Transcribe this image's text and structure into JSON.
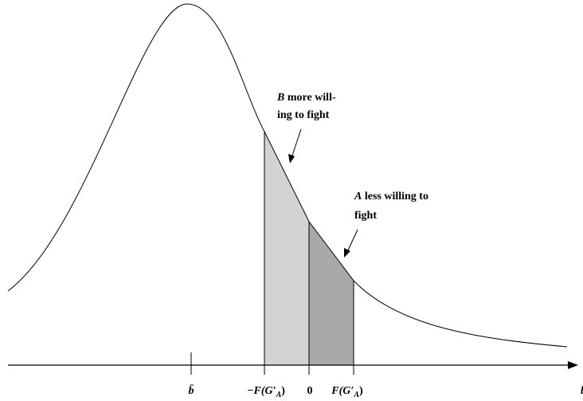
{
  "axis": {
    "label": "b",
    "ticks": [
      {
        "main": "b̄"
      },
      {
        "main": "−F(G′",
        "sub": "A",
        "close": ")"
      },
      {
        "main": "0"
      },
      {
        "main": "F(G′",
        "sub": "A",
        "close": ")"
      }
    ]
  },
  "annotations": [
    {
      "var": "B",
      "rest": " more will-",
      "line2": "ing to fight"
    },
    {
      "var": "A",
      "rest": " less willing to",
      "line2": "fight"
    }
  ]
}
